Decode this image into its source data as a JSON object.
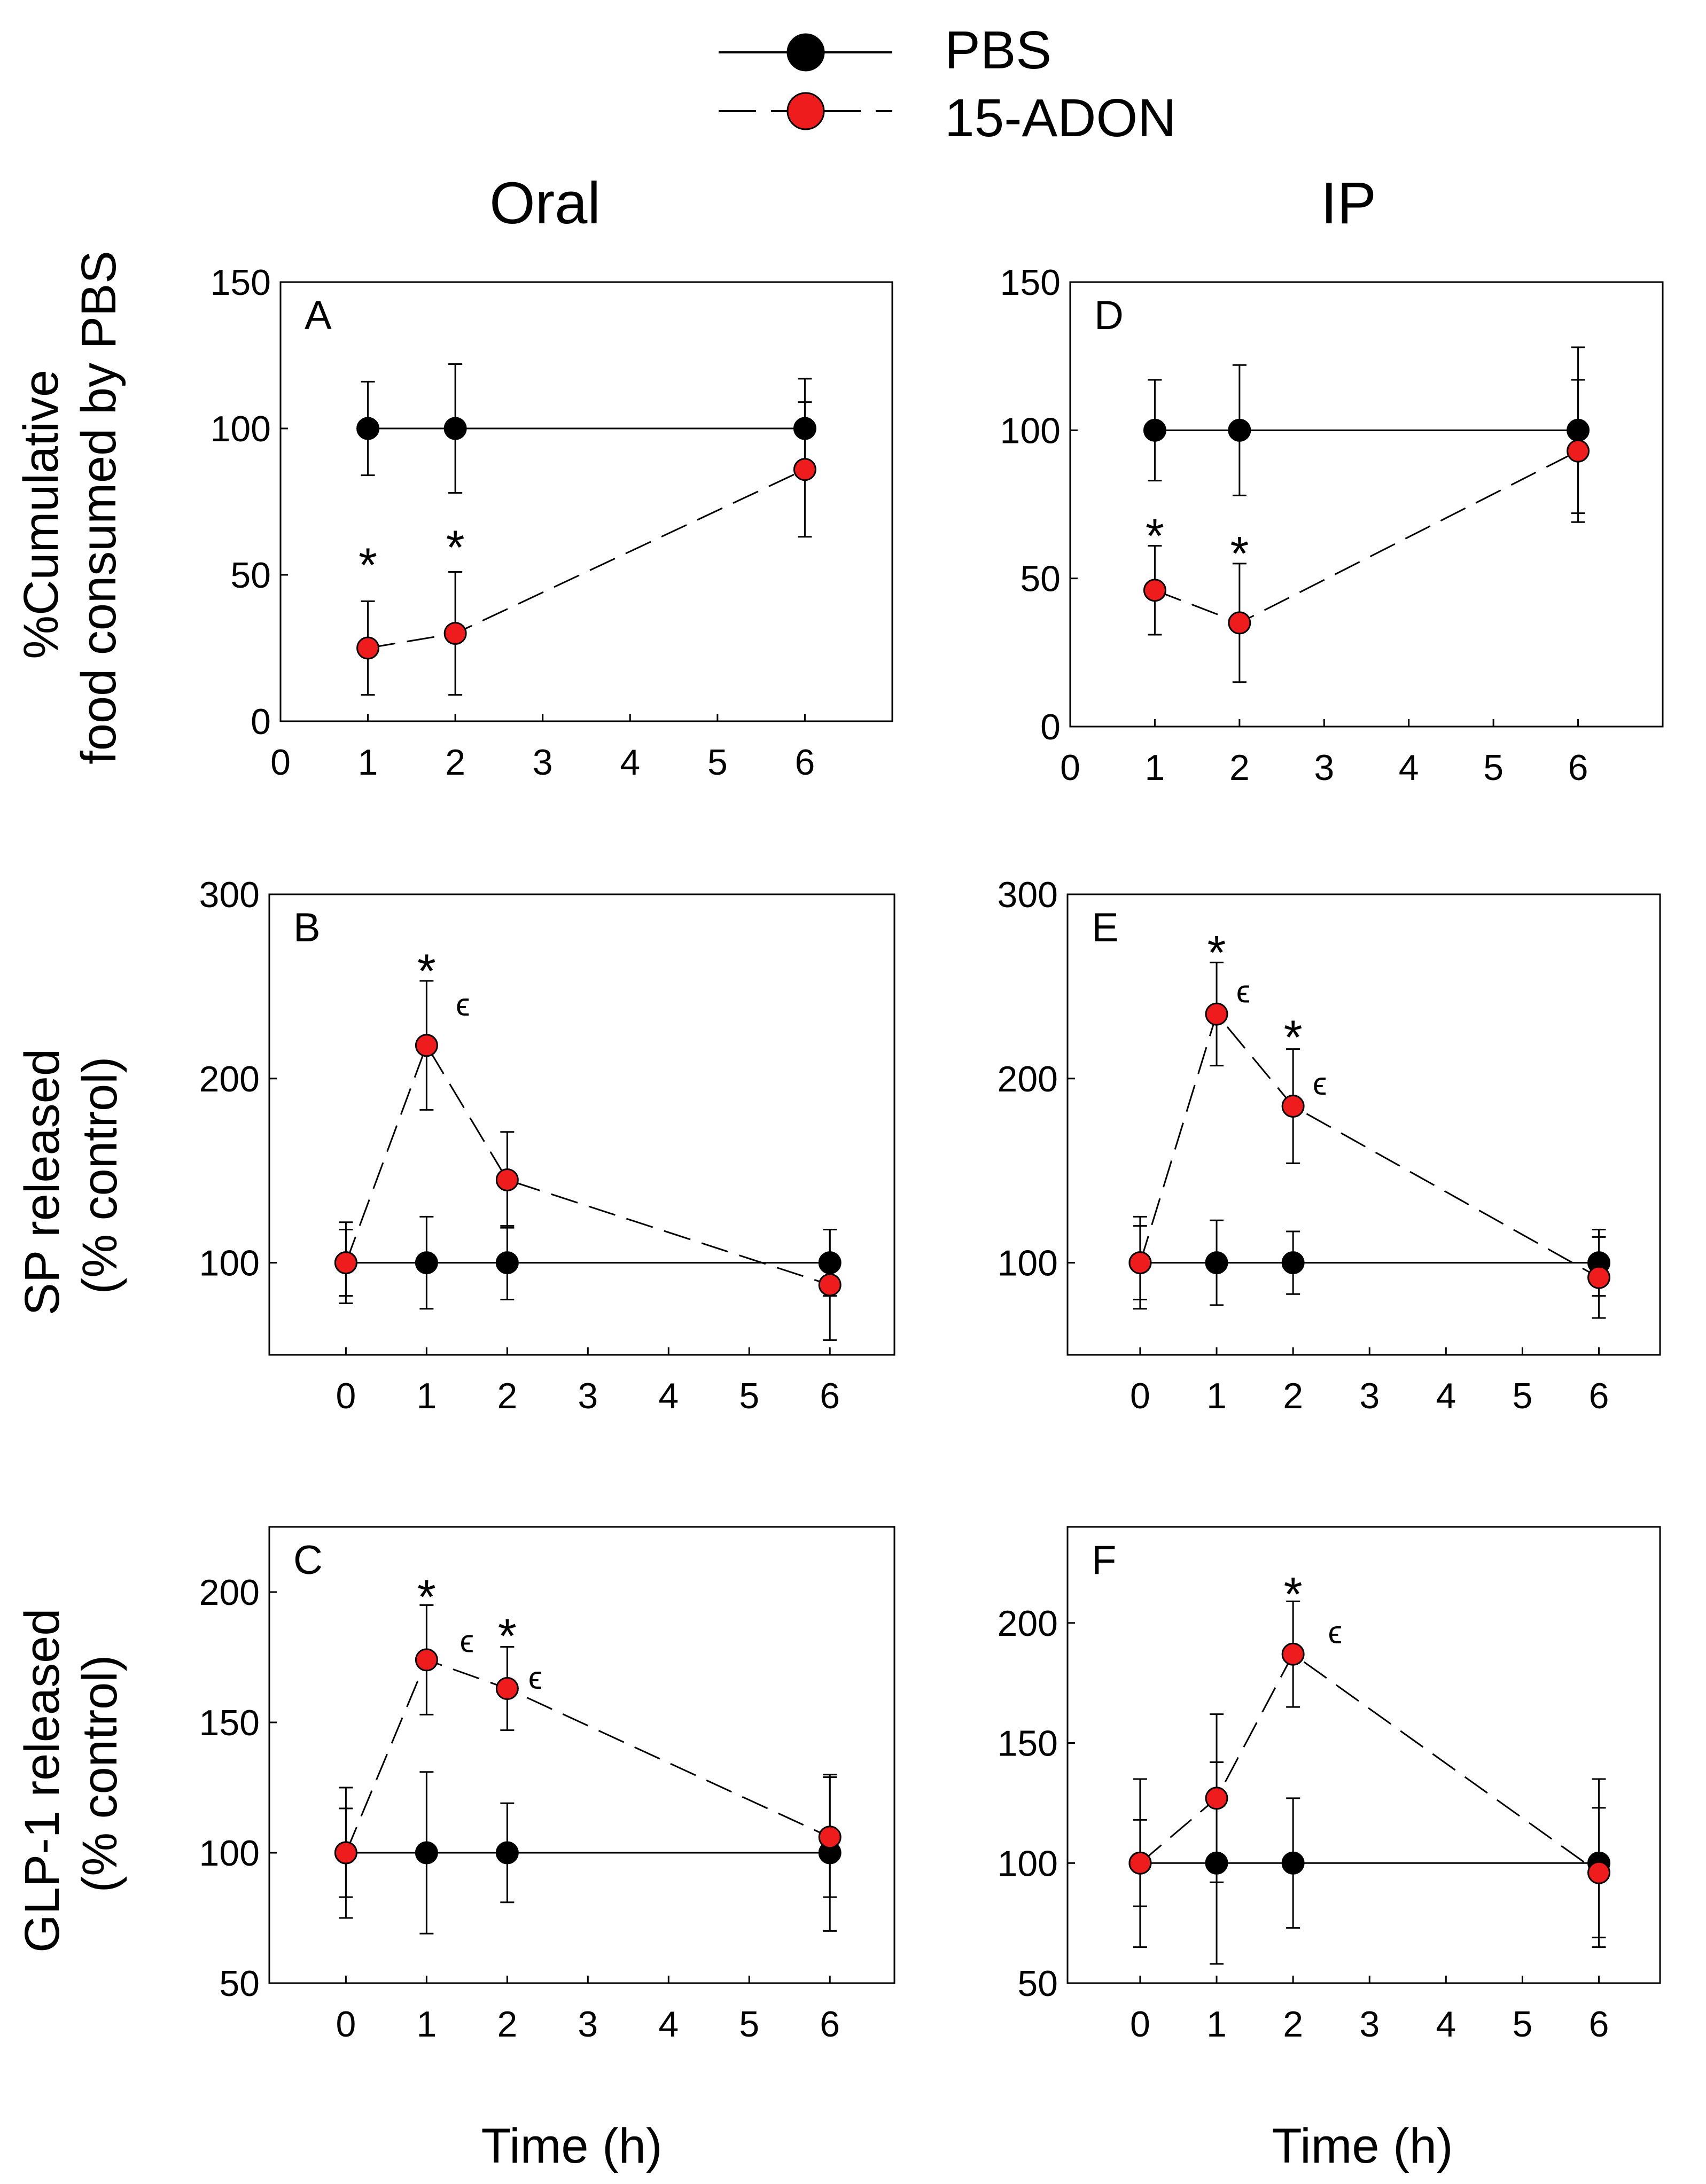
{
  "legend": {
    "items": [
      {
        "name": "PBS",
        "color": "#000000",
        "dash": false
      },
      {
        "name": "15-ADON",
        "color": "#ee1c1c",
        "dash": true
      }
    ]
  },
  "column_titles": {
    "oral": "Oral",
    "ip": "IP"
  },
  "x_axis_title": "Time (h)",
  "row_titles": {
    "food": [
      "%Cumulative",
      "food consumed by PBS"
    ],
    "sp": [
      "SP released",
      "(% control)"
    ],
    "glp1": [
      "GLP-1 released",
      "(% control)"
    ]
  },
  "annotations": {
    "star": "*",
    "epsilon": "ϵ"
  },
  "chart_data": [
    {
      "id": "A",
      "letter": "A",
      "type": "line",
      "column": "oral",
      "row": "food",
      "xlabel": "Time (h)",
      "ylabel": "%Cumulative food consumed by PBS",
      "xlim": [
        0,
        7
      ],
      "xticks": [
        0,
        1,
        2,
        3,
        4,
        5,
        6
      ],
      "ylim": [
        0,
        150
      ],
      "yticks": [
        0,
        50,
        100,
        150
      ],
      "series": [
        {
          "name": "PBS",
          "x": [
            1,
            2,
            6
          ],
          "y": [
            100,
            100,
            100
          ],
          "err": [
            16,
            22,
            17
          ]
        },
        {
          "name": "15-ADON",
          "x": [
            1,
            2,
            6
          ],
          "y": [
            25,
            30,
            86
          ],
          "err": [
            16,
            21,
            23
          ]
        }
      ],
      "stars": [
        {
          "x": 1,
          "y": 55
        },
        {
          "x": 2,
          "y": 61
        }
      ],
      "epsilons": []
    },
    {
      "id": "B",
      "letter": "B",
      "type": "line",
      "column": "oral",
      "row": "sp",
      "xlabel": "Time (h)",
      "ylabel": "SP released (% control)",
      "xlim": [
        -0.95,
        6.8
      ],
      "xticks": [
        0,
        1,
        2,
        3,
        4,
        5,
        6
      ],
      "ylim": [
        50,
        300
      ],
      "yticks": [
        100,
        200,
        300
      ],
      "series": [
        {
          "name": "PBS",
          "x": [
            0,
            1,
            2,
            6
          ],
          "y": [
            100,
            100,
            100,
            100
          ],
          "err": [
            22,
            25,
            20,
            18
          ]
        },
        {
          "name": "15-ADON",
          "x": [
            0,
            1,
            2,
            6
          ],
          "y": [
            100,
            218,
            145,
            88
          ],
          "err": [
            18,
            35,
            26,
            30
          ]
        }
      ],
      "stars": [
        {
          "x": 1,
          "y": 261
        }
      ],
      "epsilons": [
        {
          "x": 1.45,
          "y": 240
        }
      ]
    },
    {
      "id": "C",
      "letter": "C",
      "type": "line",
      "column": "oral",
      "row": "glp1",
      "xlabel": "Time (h)",
      "ylabel": "GLP-1 released (% control)",
      "xlim": [
        -0.95,
        6.8
      ],
      "xticks": [
        0,
        1,
        2,
        3,
        4,
        5,
        6
      ],
      "ylim": [
        50,
        225
      ],
      "yticks": [
        50,
        100,
        150,
        200
      ],
      "series": [
        {
          "name": "PBS",
          "x": [
            0,
            1,
            2,
            6
          ],
          "y": [
            100,
            100,
            100,
            100
          ],
          "err": [
            25,
            31,
            19,
            30
          ]
        },
        {
          "name": "15-ADON",
          "x": [
            0,
            1,
            2,
            6
          ],
          "y": [
            100,
            174,
            163,
            106
          ],
          "err": [
            17,
            21,
            16,
            23
          ]
        }
      ],
      "stars": [
        {
          "x": 1,
          "y": 200
        },
        {
          "x": 2,
          "y": 185
        }
      ],
      "epsilons": [
        {
          "x": 1.5,
          "y": 181
        },
        {
          "x": 2.35,
          "y": 167
        }
      ]
    },
    {
      "id": "D",
      "letter": "D",
      "type": "line",
      "column": "ip",
      "row": "food",
      "xlabel": "Time (h)",
      "ylabel": "%Cumulative food consumed by PBS",
      "xlim": [
        0,
        7
      ],
      "xticks": [
        0,
        1,
        2,
        3,
        4,
        5,
        6
      ],
      "ylim": [
        0,
        150
      ],
      "yticks": [
        0,
        50,
        100,
        150
      ],
      "series": [
        {
          "name": "PBS",
          "x": [
            1,
            2,
            6
          ],
          "y": [
            100,
            100,
            100
          ],
          "err": [
            17,
            22,
            28
          ]
        },
        {
          "name": "15-ADON",
          "x": [
            1,
            2,
            6
          ],
          "y": [
            46,
            35,
            93
          ],
          "err": [
            15,
            20,
            24
          ]
        }
      ],
      "stars": [
        {
          "x": 1,
          "y": 66
        },
        {
          "x": 2,
          "y": 60
        }
      ],
      "epsilons": []
    },
    {
      "id": "E",
      "letter": "E",
      "type": "line",
      "column": "ip",
      "row": "sp",
      "xlabel": "Time (h)",
      "ylabel": "SP released (% control)",
      "xlim": [
        -0.95,
        6.8
      ],
      "xticks": [
        0,
        1,
        2,
        3,
        4,
        5,
        6
      ],
      "ylim": [
        50,
        300
      ],
      "yticks": [
        100,
        200,
        300
      ],
      "series": [
        {
          "name": "PBS",
          "x": [
            0,
            1,
            2,
            6
          ],
          "y": [
            100,
            100,
            100,
            100
          ],
          "err": [
            25,
            23,
            17,
            18
          ]
        },
        {
          "name": "15-ADON",
          "x": [
            0,
            1,
            2,
            6
          ],
          "y": [
            100,
            235,
            185,
            92
          ],
          "err": [
            20,
            28,
            31,
            22
          ]
        }
      ],
      "stars": [
        {
          "x": 1,
          "y": 271
        },
        {
          "x": 2,
          "y": 225
        }
      ],
      "epsilons": [
        {
          "x": 1.35,
          "y": 247
        },
        {
          "x": 2.35,
          "y": 197
        }
      ]
    },
    {
      "id": "F",
      "letter": "F",
      "type": "line",
      "column": "ip",
      "row": "glp1",
      "xlabel": "Time (h)",
      "ylabel": "GLP-1 released (% control)",
      "xlim": [
        -0.95,
        6.8
      ],
      "xticks": [
        0,
        1,
        2,
        3,
        4,
        5,
        6
      ],
      "ylim": [
        50,
        240
      ],
      "yticks": [
        50,
        100,
        150,
        200
      ],
      "series": [
        {
          "name": "PBS",
          "x": [
            0,
            1,
            2,
            6
          ],
          "y": [
            100,
            100,
            100,
            100
          ],
          "err": [
            35,
            42,
            27,
            35
          ]
        },
        {
          "name": "15-ADON",
          "x": [
            0,
            1,
            2,
            6
          ],
          "y": [
            100,
            127,
            187,
            96
          ],
          "err": [
            18,
            35,
            22,
            27
          ]
        }
      ],
      "stars": [
        {
          "x": 2,
          "y": 214
        }
      ],
      "epsilons": [
        {
          "x": 2.55,
          "y": 196
        }
      ]
    }
  ]
}
